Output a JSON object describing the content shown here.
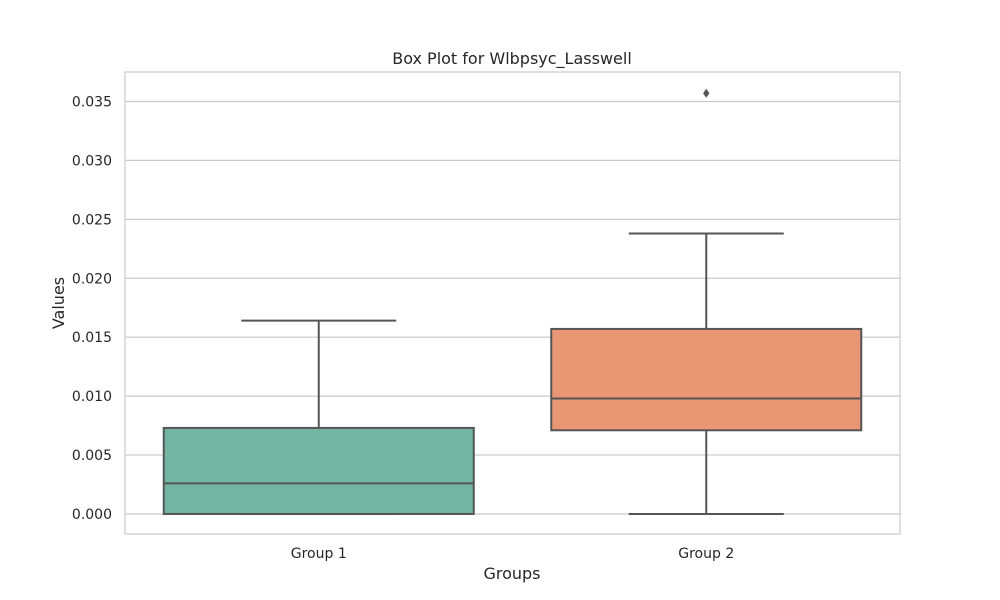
{
  "chart_data": {
    "type": "box",
    "title": "Box Plot for Wlbpsyc_Lasswell",
    "xlabel": "Groups",
    "ylabel": "Values",
    "ylim": [
      -0.0017,
      0.0375
    ],
    "yticks": [
      0.0,
      0.005,
      0.01,
      0.015,
      0.02,
      0.025,
      0.03,
      0.035
    ],
    "ytick_labels": [
      "0.000",
      "0.005",
      "0.010",
      "0.015",
      "0.020",
      "0.025",
      "0.030",
      "0.035"
    ],
    "grid": true,
    "groups": [
      {
        "label": "Group 1",
        "color": "#72b6a1",
        "whisker_low": 0.0,
        "q1": 0.0,
        "median": 0.0026,
        "q3": 0.0073,
        "whisker_high": 0.0164,
        "outliers": []
      },
      {
        "label": "Group 2",
        "color": "#e99675",
        "whisker_low": 0.0,
        "q1": 0.0071,
        "median": 0.0098,
        "q3": 0.0157,
        "whisker_high": 0.0238,
        "outliers": [
          0.0357
        ]
      }
    ]
  }
}
